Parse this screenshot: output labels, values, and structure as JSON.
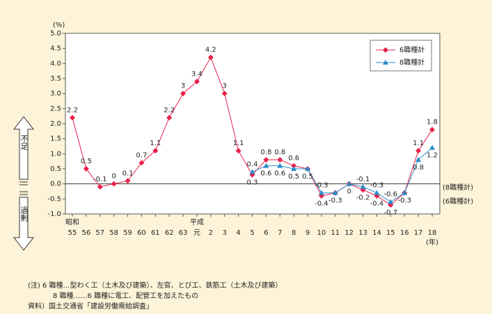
{
  "chart_data": {
    "type": "line",
    "y_unit_label": "(%)",
    "categories": [
      "55",
      "56",
      "57",
      "58",
      "59",
      "60",
      "61",
      "62",
      "63",
      "元",
      "2",
      "3",
      "4",
      "5",
      "6",
      "7",
      "8",
      "9",
      "10",
      "11",
      "12",
      "13",
      "14",
      "15",
      "16",
      "17",
      "18"
    ],
    "era_labels": [
      {
        "index": 0,
        "label": "昭和"
      },
      {
        "index": 9,
        "label": "平成"
      }
    ],
    "x_unit_label": "(年)",
    "series": [
      {
        "name": "6職種計",
        "color": "#e8204a",
        "marker": "diamond",
        "values": [
          2.2,
          0.5,
          -0.1,
          0.0,
          0.1,
          0.7,
          1.1,
          2.2,
          3.0,
          3.4,
          4.2,
          3.0,
          1.1,
          0.3,
          0.8,
          0.8,
          0.6,
          0.5,
          -0.4,
          -0.3,
          0.0,
          -0.2,
          -0.4,
          -0.7,
          -0.3,
          1.1,
          1.8
        ]
      },
      {
        "name": "8職種計",
        "color": "#2a8cc8",
        "marker": "triangle",
        "values": [
          null,
          null,
          null,
          null,
          null,
          null,
          null,
          null,
          null,
          null,
          null,
          null,
          null,
          0.4,
          0.6,
          0.6,
          0.5,
          0.5,
          -0.3,
          -0.3,
          0.0,
          -0.1,
          -0.3,
          -0.6,
          -0.3,
          0.8,
          1.2
        ]
      }
    ],
    "ylim": [
      -1,
      5
    ],
    "yticks": [
      {
        "value": 5,
        "label": "5.0"
      },
      {
        "value": 4.5,
        "label": "4.5"
      },
      {
        "value": 4,
        "label": "4.0"
      },
      {
        "value": 3.5,
        "label": "3.5"
      },
      {
        "value": 3,
        "label": "3.0"
      },
      {
        "value": 2.5,
        "label": "2.5"
      },
      {
        "value": 2,
        "label": "2.0"
      },
      {
        "value": 1.5,
        "label": "1.5"
      },
      {
        "value": 1,
        "label": "1.0"
      },
      {
        "value": 0.5,
        "label": "0.5"
      },
      {
        "value": 0,
        "label": "0.0"
      },
      {
        "value": -0.5,
        "label": "-0.5"
      },
      {
        "value": -1,
        "label": "-1.0"
      }
    ],
    "right_labels": [
      "(8職種計)",
      "(6職種計)"
    ],
    "side_labels": [
      "不足",
      "過剰"
    ],
    "legend": "upper right",
    "notes": [
      "(注) 6 職種…型わく工（土木及び建築）、左官、とび工、鉄筋工（土木及び建築）",
      "8 職種……6 職種に電工、配管工を加えたもの",
      "資料）国土交通省「建設労働需給調査」"
    ]
  }
}
